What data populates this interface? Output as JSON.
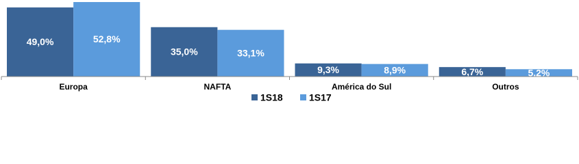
{
  "chart_data": {
    "type": "bar",
    "categories": [
      "Europa",
      "NAFTA",
      "América do Sul",
      "Outros"
    ],
    "series": [
      {
        "name": "1S18",
        "color": "#3a6496",
        "values": [
          49.0,
          35.0,
          9.3,
          6.7
        ],
        "value_labels": [
          "49,0%",
          "35,0%",
          "9,3%",
          "6,7%"
        ]
      },
      {
        "name": "1S17",
        "color": "#5b9bdc",
        "values": [
          52.8,
          33.1,
          8.9,
          5.2
        ],
        "value_labels": [
          "52,8%",
          "33,1%",
          "8,9%",
          "5,2%"
        ]
      }
    ]
  }
}
